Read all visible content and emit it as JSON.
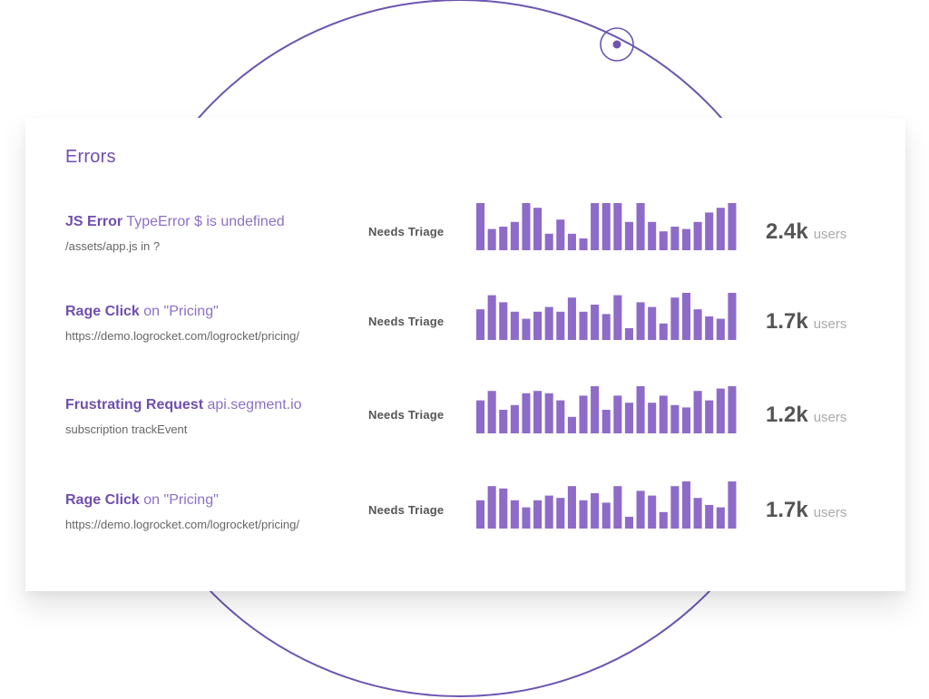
{
  "panel": {
    "title": "Errors"
  },
  "colors": {
    "accent": "#6f4eb0",
    "bar": "#8e6bc8",
    "ring": "#6c55b0"
  },
  "rows": [
    {
      "kind": "JS Error",
      "detail": "TypeError $ is undefined",
      "subtitle": "/assets/app.js in ?",
      "status": "Needs Triage",
      "count": "2.4k",
      "unit": "users",
      "trend": [
        10,
        4.5,
        5,
        6,
        10,
        9,
        3.5,
        6.5,
        3.5,
        2.5,
        10,
        10,
        10,
        6,
        10,
        6,
        4,
        5,
        4.5,
        6,
        8,
        9,
        10
      ]
    },
    {
      "kind": "Rage Click",
      "detail": "on \"Pricing\"",
      "subtitle": "https://demo.logrocket.com/logrocket/pricing/",
      "status": "Needs Triage",
      "count": "1.7k",
      "unit": "users",
      "trend": [
        6.5,
        9.5,
        8,
        6,
        4.5,
        6,
        7,
        6,
        9,
        6,
        7.5,
        5.5,
        9.5,
        2.5,
        8,
        7,
        3.5,
        9,
        10,
        6.5,
        5,
        4.5,
        10
      ]
    },
    {
      "kind": "Frustrating Request",
      "detail": "api.segment.io",
      "subtitle": "subscription trackEvent",
      "status": "Needs Triage",
      "count": "1.2k",
      "unit": "users",
      "trend": [
        7,
        9,
        5,
        6,
        8.5,
        9,
        8.5,
        7,
        3.5,
        8,
        10,
        5,
        8,
        6.5,
        10,
        6.5,
        8,
        6,
        5.5,
        9,
        7,
        9.5,
        10
      ]
    },
    {
      "kind": "Rage Click",
      "detail": "on \"Pricing\"",
      "subtitle": "https://demo.logrocket.com/logrocket/pricing/",
      "status": "Needs Triage",
      "count": "1.7k",
      "unit": "users",
      "trend": [
        6,
        9,
        8.5,
        6,
        4.5,
        6,
        7,
        6.5,
        9,
        6,
        7.5,
        5.5,
        9,
        2.5,
        8,
        7,
        3.5,
        9,
        10,
        6.5,
        5,
        4.5,
        10
      ]
    }
  ]
}
